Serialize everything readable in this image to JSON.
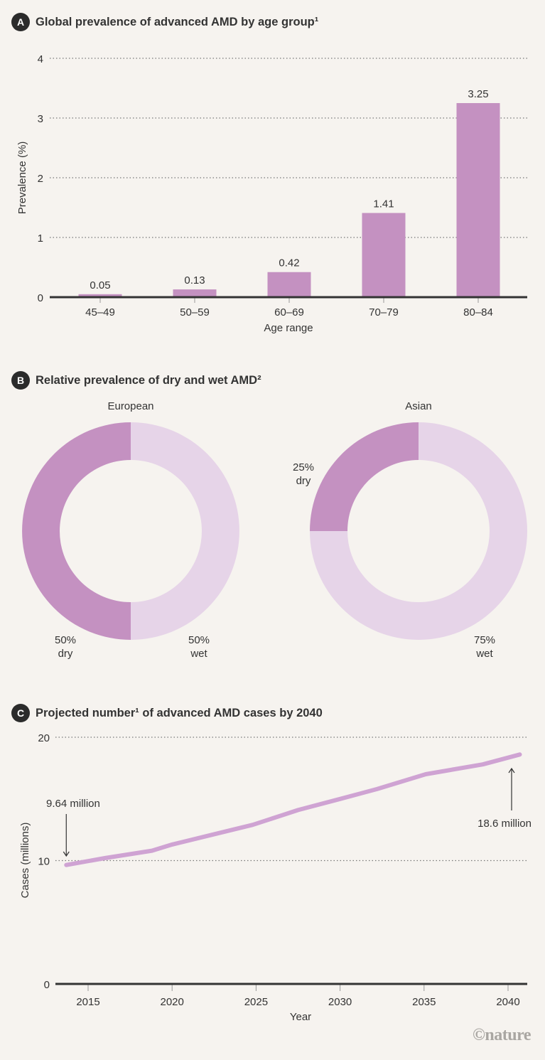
{
  "panels": {
    "a": {
      "badge": "A",
      "title": "Global prevalence of advanced AMD by age group¹"
    },
    "b": {
      "badge": "B",
      "title": "Relative prevalence of dry and wet AMD²"
    },
    "c": {
      "badge": "C",
      "title": "Projected number¹ of advanced AMD cases by 2040"
    }
  },
  "colors": {
    "dark_purple": "#c491c1",
    "light_purple": "#e6d4e8",
    "line": "#cfa3d3",
    "axis": "#333333",
    "grid": "#777777",
    "background": "#f6f3ef"
  },
  "credit": "©nature",
  "chart_data": [
    {
      "type": "bar",
      "title": "Global prevalence of advanced AMD by age group¹",
      "categories": [
        "45–49",
        "50–59",
        "60–69",
        "70–79",
        "80–84"
      ],
      "values": [
        0.05,
        0.13,
        0.42,
        1.41,
        3.25
      ],
      "data_labels": [
        "0.05",
        "0.13",
        "0.42",
        "1.41",
        "3.25"
      ],
      "xlabel": "Age range",
      "ylabel": "Prevalence (%)",
      "ylim": [
        0,
        4
      ],
      "yticks": [
        0,
        1,
        2,
        3,
        4
      ],
      "grid": true
    },
    {
      "type": "pie",
      "title": "Relative prevalence of dry and wet AMD²",
      "donuts": [
        {
          "label": "European",
          "slices": [
            {
              "name": "dry",
              "value": 50,
              "pct_label": "50%",
              "color": "#c491c1"
            },
            {
              "name": "wet",
              "value": 50,
              "pct_label": "50%",
              "color": "#e6d4e8"
            }
          ]
        },
        {
          "label": "Asian",
          "slices": [
            {
              "name": "dry",
              "value": 25,
              "pct_label": "25%",
              "color": "#c491c1"
            },
            {
              "name": "wet",
              "value": 75,
              "pct_label": "75%",
              "color": "#e6d4e8"
            }
          ]
        }
      ]
    },
    {
      "type": "line",
      "title": "Projected number¹ of advanced AMD cases by 2040",
      "x": [
        2013.7,
        2016,
        2018.8,
        2020,
        2022.4,
        2024.8,
        2027.5,
        2030,
        2032.2,
        2035.1,
        2038.5,
        2040.7
      ],
      "values": [
        9.64,
        10.2,
        10.8,
        11.3,
        12.1,
        12.9,
        14.1,
        15.0,
        15.8,
        17.0,
        17.8,
        18.6
      ],
      "xlabel": "Year",
      "ylabel": "Cases (millions)",
      "xlim": [
        2012.6,
        2041.6
      ],
      "ylim": [
        0,
        20
      ],
      "xticks": [
        2015,
        2020,
        2025,
        2030,
        2035,
        2040
      ],
      "yticks": [
        0,
        10,
        20
      ],
      "grid": true,
      "annotations": [
        {
          "text": "9.64 million",
          "x": 2013.7,
          "y": 9.64,
          "arrow": "down"
        },
        {
          "text": "18.6 million",
          "x": 2040.7,
          "y": 18.6,
          "arrow": "up"
        }
      ]
    }
  ]
}
